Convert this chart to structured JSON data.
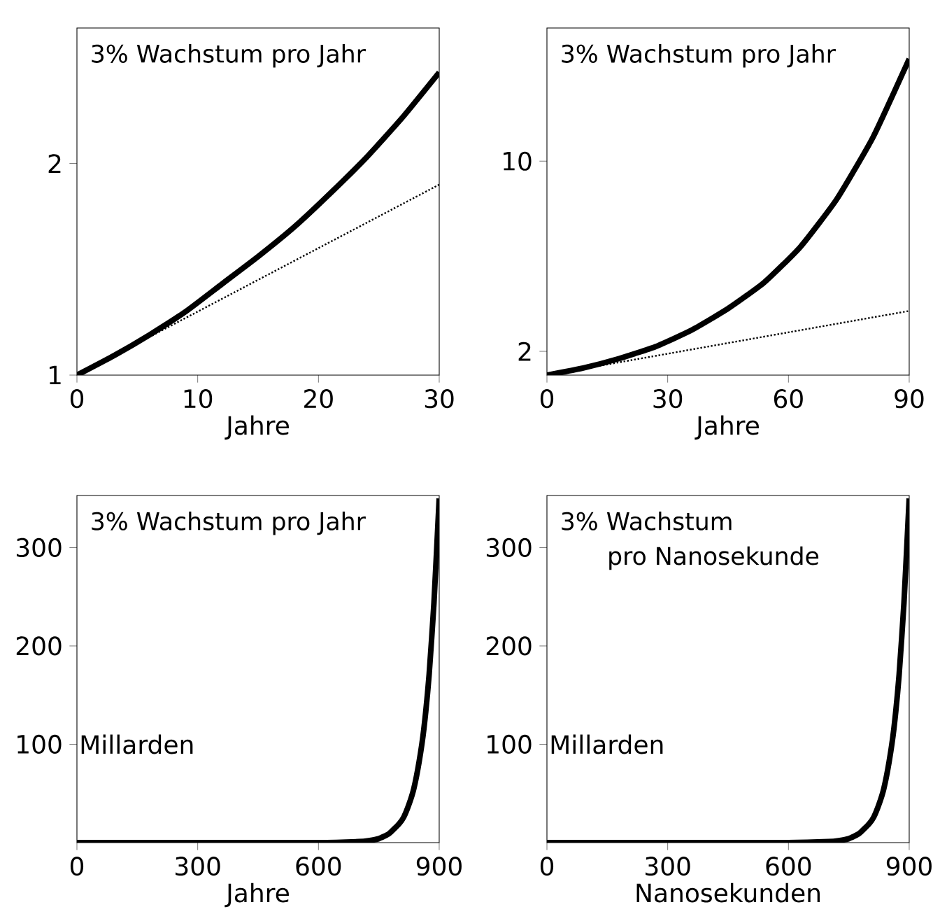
{
  "chart_data": [
    {
      "type": "line",
      "title": "3% Wachstum pro Jahr",
      "xlabel": "Jahre",
      "xlim": [
        0,
        30
      ],
      "ylim": [
        1,
        2.64
      ],
      "xticks": [
        0,
        10,
        20,
        30
      ],
      "yticks": [
        1,
        2
      ],
      "grid": false,
      "series": [
        {
          "color": "#000000",
          "line_style": "solid",
          "x": [
            0,
            3,
            6,
            9,
            12,
            15,
            18,
            21,
            24,
            27,
            30
          ],
          "values": [
            1,
            1.09,
            1.19,
            1.3,
            1.43,
            1.56,
            1.7,
            1.86,
            2.03,
            2.22,
            2.43
          ]
        },
        {
          "color": "#000000",
          "line_style": "dotted",
          "x": [
            0,
            30
          ],
          "values": [
            1,
            1.9
          ]
        }
      ]
    },
    {
      "type": "line",
      "title": "3% Wachstum pro Jahr",
      "xlabel": "Jahre",
      "xlim": [
        0,
        90
      ],
      "ylim": [
        1,
        15.6
      ],
      "xticks": [
        0,
        30,
        60,
        90
      ],
      "yticks": [
        2,
        10
      ],
      "grid": false,
      "series": [
        {
          "color": "#000000",
          "line_style": "solid",
          "x": [
            0,
            9,
            18,
            27,
            36,
            45,
            54,
            63,
            72,
            81,
            90
          ],
          "values": [
            1,
            1.3,
            1.7,
            2.2,
            2.9,
            3.8,
            4.9,
            6.4,
            8.4,
            11,
            14.3
          ]
        },
        {
          "color": "#000000",
          "line_style": "dotted",
          "x": [
            0,
            90
          ],
          "values": [
            1,
            3.7
          ]
        }
      ]
    },
    {
      "type": "line",
      "title": "3% Wachstum pro Jahr",
      "xlabel": "Jahre",
      "annotations": [
        "Millarden"
      ],
      "xlim": [
        0,
        900
      ],
      "ylim": [
        0,
        353
      ],
      "xticks": [
        0,
        300,
        600,
        900
      ],
      "yticks": [
        100,
        200,
        300
      ],
      "grid": false,
      "series": [
        {
          "color": "#000000",
          "line_style": "solid",
          "x": [
            0,
            300,
            600,
            700,
            725,
            750,
            775,
            800,
            812,
            825,
            837,
            850,
            862,
            875,
            887,
            900
          ],
          "values": [
            0,
            0,
            0,
            1,
            2,
            4,
            9,
            19,
            26,
            39,
            55,
            82,
            116,
            171,
            244,
            350
          ]
        }
      ]
    },
    {
      "type": "line",
      "title": "3% Wachstum",
      "subtitle": "pro Nanosekunde",
      "xlabel": "Nanosekunden",
      "annotations": [
        "Millarden"
      ],
      "xlim": [
        0,
        900
      ],
      "ylim": [
        0,
        353
      ],
      "xticks": [
        0,
        300,
        600,
        900
      ],
      "yticks": [
        100,
        200,
        300
      ],
      "grid": false,
      "series": [
        {
          "color": "#000000",
          "line_style": "solid",
          "x": [
            0,
            300,
            600,
            700,
            725,
            750,
            775,
            800,
            812,
            825,
            837,
            850,
            862,
            875,
            887,
            900
          ],
          "values": [
            0,
            0,
            0,
            1,
            2,
            4,
            9,
            19,
            26,
            39,
            55,
            82,
            116,
            171,
            244,
            350
          ]
        }
      ]
    }
  ]
}
